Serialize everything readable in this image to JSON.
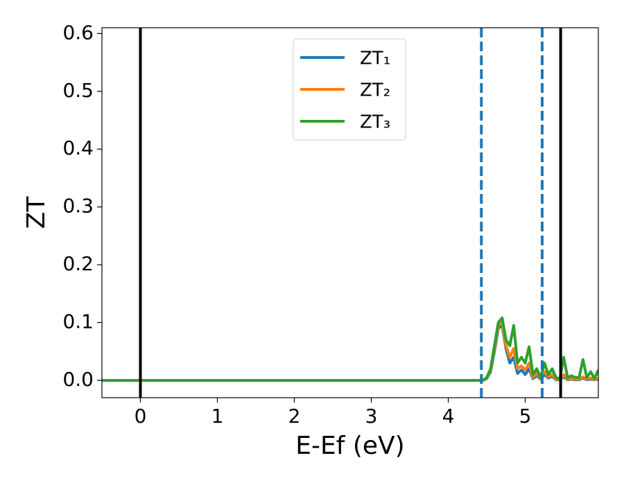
{
  "chart_data": {
    "type": "line",
    "xlabel": "E-Ef (eV)",
    "ylabel": "ZT",
    "x": [
      -0.5,
      4.4,
      4.45,
      4.5,
      4.55,
      4.6,
      4.65,
      4.7,
      4.75,
      4.8,
      4.85,
      4.9,
      4.95,
      5.0,
      5.05,
      5.1,
      5.15,
      5.2,
      5.25,
      5.3,
      5.35,
      5.4,
      5.45,
      5.5,
      5.55,
      5.6,
      5.65,
      5.7,
      5.75,
      5.8,
      5.85,
      5.9,
      5.95
    ],
    "series": [
      {
        "name": "ZT₁",
        "color": "#1f77b4",
        "values": [
          0,
          0,
          0,
          0.003,
          0.015,
          0.05,
          0.09,
          0.095,
          0.055,
          0.03,
          0.04,
          0.012,
          0.018,
          0.01,
          0.02,
          0.003,
          0.008,
          0.002,
          0.01,
          0.004,
          0.007,
          0.001,
          0.001,
          0.006,
          0.001,
          0.002,
          0.001,
          0.001,
          0.004,
          0.001,
          0.002,
          0.001,
          0.002
        ]
      },
      {
        "name": "ZT₂",
        "color": "#ff7f0e",
        "values": [
          0,
          0,
          0,
          0.004,
          0.018,
          0.055,
          0.095,
          0.1,
          0.06,
          0.04,
          0.055,
          0.02,
          0.025,
          0.018,
          0.03,
          0.005,
          0.012,
          0.003,
          0.015,
          0.006,
          0.01,
          0.002,
          0.001,
          0.01,
          0.002,
          0.003,
          0.002,
          0.002,
          0.006,
          0.002,
          0.004,
          0.001,
          0.003
        ]
      },
      {
        "name": "ZT₃",
        "color": "#2ca02c",
        "values": [
          0,
          0,
          0,
          0.005,
          0.02,
          0.06,
          0.1,
          0.108,
          0.07,
          0.06,
          0.095,
          0.03,
          0.04,
          0.03,
          0.058,
          0.01,
          0.02,
          0.005,
          0.03,
          0.01,
          0.02,
          0.005,
          0.002,
          0.04,
          0.005,
          0.008,
          0.005,
          0.005,
          0.036,
          0.005,
          0.015,
          0.003,
          0.018
        ]
      }
    ],
    "vlines": [
      {
        "x": 0,
        "color": "#000000",
        "dashed": false
      },
      {
        "x": 5.46,
        "color": "#000000",
        "dashed": false
      },
      {
        "x": 4.43,
        "color": "#1f77b4",
        "dashed": true
      },
      {
        "x": 5.22,
        "color": "#1f77b4",
        "dashed": true
      }
    ],
    "xlim": [
      -0.5,
      5.95
    ],
    "ylim": [
      -0.03,
      0.61
    ],
    "xticks": [
      0,
      1,
      2,
      3,
      4,
      5
    ],
    "yticks": [
      {
        "value": 0,
        "label": "0.0"
      },
      0.1,
      0.2,
      0.3,
      0.4,
      0.5,
      0.6
    ],
    "legend": "upper center",
    "grid": false
  }
}
